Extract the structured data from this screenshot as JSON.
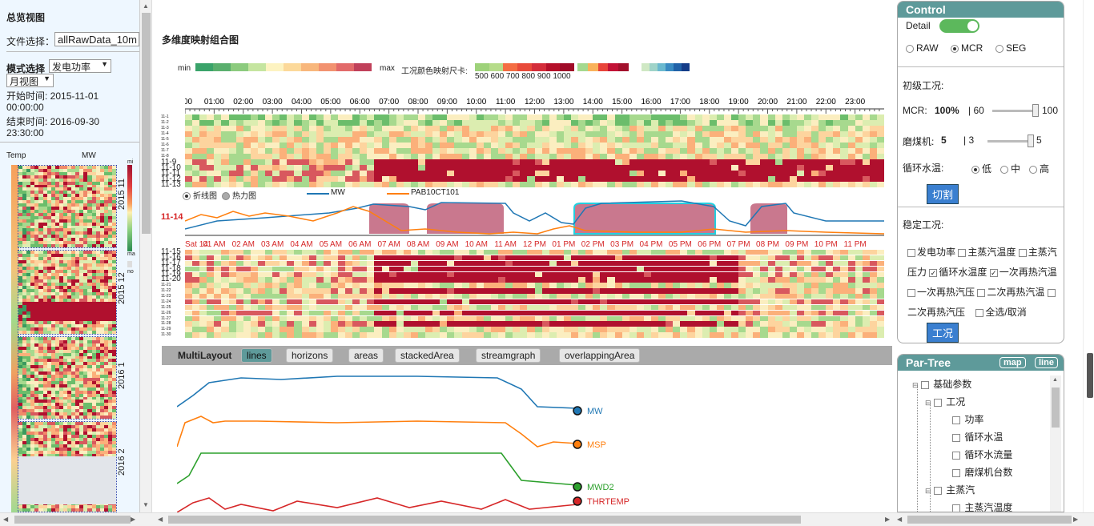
{
  "left": {
    "title": "总览视图",
    "file_label": "文件选择：",
    "file_value": "allRawData_10m",
    "mode_label": "模式选择",
    "mode_value": "发电功率",
    "view_value": "月视图",
    "start_label": "开始时间: 2015-11-01",
    "start_time": "00:00:00",
    "end_label": "结束时间: 2016-09-30",
    "end_time": "23:30:00",
    "col_temp": "Temp",
    "col_mw": "MW",
    "months": [
      "2015 11",
      "2015 12",
      "2016 1",
      "2016 2"
    ],
    "scale_min": "mi",
    "scale_max": "ma",
    "scale_no": "no"
  },
  "main": {
    "title": "多维度映射组合图",
    "legend_min": "min",
    "legend_max": "max",
    "legend_caption": "工况颜色映射尺卡:",
    "legend_ticks": "500 600 700 800 900 1000",
    "hours": [
      "00",
      "01:00",
      "02:00",
      "03:00",
      "04:00",
      "05:00",
      "06:00",
      "07:00",
      "08:00",
      "09:00",
      "10:00",
      "11:00",
      "12:00",
      "13:00",
      "14:00",
      "15:00",
      "16:00",
      "17:00",
      "18:00",
      "19:00",
      "20:00",
      "21:00",
      "22:00",
      "23:00"
    ],
    "rows_top": [
      "11-1",
      "11-2",
      "11-3",
      "11-4",
      "11-5",
      "11-6",
      "11-7",
      "11-8",
      "11-9",
      "11-10",
      "11-11",
      "11-12",
      "11-13"
    ],
    "rows_bottom": [
      "11-15",
      "11-16",
      "11-17",
      "11-18",
      "11-19",
      "11-20",
      "11-21",
      "11-22",
      "11-23",
      "11-24",
      "11-25",
      "11-26",
      "11-27",
      "11-28",
      "11-29",
      "11-30"
    ],
    "mode_line": "折线图",
    "mode_heat": "热力图",
    "series_mw": "MW",
    "series_pab": "PAB10CT101",
    "selected_day": "11-14",
    "time_axis": [
      "Sat 14",
      "01 AM",
      "02 AM",
      "03 AM",
      "04 AM",
      "05 AM",
      "06 AM",
      "07 AM",
      "08 AM",
      "09 AM",
      "10 AM",
      "11 AM",
      "12 PM",
      "01 PM",
      "02 PM",
      "03 PM",
      "04 PM",
      "05 PM",
      "06 PM",
      "07 PM",
      "08 PM",
      "09 PM",
      "10 PM",
      "11 PM"
    ],
    "multilayout_label": "MultiLayout",
    "layouts": [
      "lines",
      "horizons",
      "areas",
      "stackedArea",
      "streamgraph",
      "overlappingArea"
    ],
    "active_layout": "lines",
    "line_series": [
      {
        "name": "MW",
        "color": "#1f77b4"
      },
      {
        "name": "MSP",
        "color": "#ff7f0e"
      },
      {
        "name": "MWD2",
        "color": "#2ca02c"
      },
      {
        "name": "THRTEMP",
        "color": "#d62728"
      }
    ]
  },
  "control": {
    "title": "Control",
    "detail_label": "Detail",
    "radio_raw": "RAW",
    "radio_mcr": "MCR",
    "radio_seg": "SEG",
    "init_label": "初级工况:",
    "mcr_label": "MCR:",
    "mcr_value": "100%",
    "mcr_min": "| 60",
    "mcr_max": "100",
    "mill_label": "磨煤机:",
    "mill_value": "5",
    "mill_min": "| 3",
    "mill_max": "5",
    "water_label": "循环水温:",
    "water_low": "低",
    "water_mid": "中",
    "water_high": "高",
    "cut_button": "切割",
    "steady_label": "稳定工况:",
    "cb_power": "发电功率",
    "cb_main_temp": "主蒸汽温度",
    "cb_main_press_a": "主蒸汽",
    "cb_main_press_b": "压力",
    "cb_circ_temp": "循环水温度",
    "cb_reheat1_temp": "一次再热汽温",
    "cb_reheat1_press": "一次再热汽压",
    "cb_reheat2_temp": "二次再热汽温",
    "cb_reheat2_press": "二次再热汽压",
    "cb_all": "全选/取消",
    "condition_button": "工况"
  },
  "partree": {
    "title": "Par-Tree",
    "btn_map": "map",
    "btn_line": "line",
    "nodes": [
      "基础参数",
      "工况",
      "功率",
      "循环水温",
      "循环水流量",
      "磨煤机台数",
      "主蒸汽",
      "主蒸汽温度"
    ]
  },
  "colors": {
    "accent": "#5e9a9a",
    "mw": "#1f77b4",
    "pab": "#ff7f0e",
    "highlight": "#c0607a",
    "cyan": "#22d0e0",
    "hot": "#b0102e"
  }
}
